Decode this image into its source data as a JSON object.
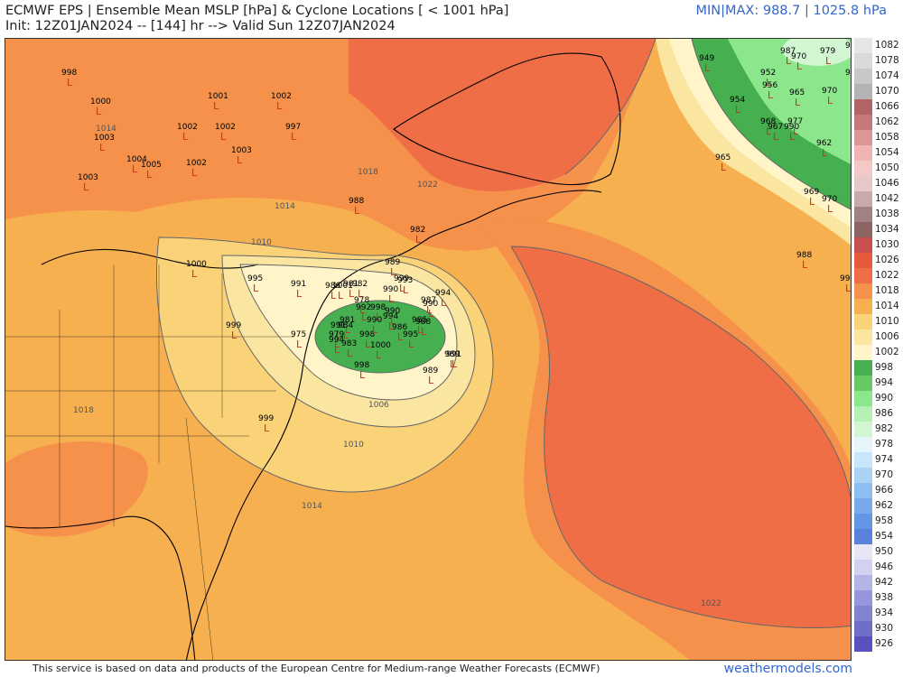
{
  "header": {
    "title_line1": "ECMWF EPS | Ensemble Mean MSLP [hPa] & Cyclone Locations [ < 1001 hPa]",
    "title_line2": "Init: 12Z01JAN2024 -- [144] hr --> Valid Sun 12Z07JAN2024",
    "minmax": "MIN|MAX: 988.7 | 1025.8 hPa"
  },
  "footer": {
    "attribution": "This service is based on data and products of the European Centre for Medium-range Weather Forecasts (ECMWF)",
    "brand": "weathermodels.com"
  },
  "colorbar": [
    {
      "label": "1082",
      "color": "#e6e6e6"
    },
    {
      "label": "1078",
      "color": "#dadada"
    },
    {
      "label": "1074",
      "color": "#c8c8c8"
    },
    {
      "label": "1070",
      "color": "#b4b4b4"
    },
    {
      "label": "1066",
      "color": "#b46464"
    },
    {
      "label": "1062",
      "color": "#c87878"
    },
    {
      "label": "1058",
      "color": "#dc9696"
    },
    {
      "label": "1054",
      "color": "#f0b4b4"
    },
    {
      "label": "1050",
      "color": "#f5c8c8"
    },
    {
      "label": "1046",
      "color": "#e6c8c8"
    },
    {
      "label": "1042",
      "color": "#c8aaaa"
    },
    {
      "label": "1038",
      "color": "#a08282"
    },
    {
      "label": "1034",
      "color": "#8c6464"
    },
    {
      "label": "1030",
      "color": "#c85050"
    },
    {
      "label": "1026",
      "color": "#e65a3c"
    },
    {
      "label": "1022",
      "color": "#f06e46"
    },
    {
      "label": "1018",
      "color": "#f5914b"
    },
    {
      "label": "1014",
      "color": "#f7b050"
    },
    {
      "label": "1010",
      "color": "#fad278"
    },
    {
      "label": "1006",
      "color": "#fae6a0"
    },
    {
      "label": "1002",
      "color": "#fff5c8"
    },
    {
      "label": "998",
      "color": "#46af50"
    },
    {
      "label": "994",
      "color": "#64c864"
    },
    {
      "label": "990",
      "color": "#8ce68c"
    },
    {
      "label": "986",
      "color": "#b4f0b4"
    },
    {
      "label": "982",
      "color": "#d2f5d2"
    },
    {
      "label": "978",
      "color": "#e6f5fa"
    },
    {
      "label": "974",
      "color": "#c8e6fa"
    },
    {
      "label": "970",
      "color": "#aad2f5"
    },
    {
      "label": "966",
      "color": "#8cbef0"
    },
    {
      "label": "962",
      "color": "#78aaeb"
    },
    {
      "label": "958",
      "color": "#6496e6"
    },
    {
      "label": "954",
      "color": "#5a82dc"
    },
    {
      "label": "950",
      "color": "#e6e6f5"
    },
    {
      "label": "946",
      "color": "#d2d2f0"
    },
    {
      "label": "942",
      "color": "#b4b4e6"
    },
    {
      "label": "938",
      "color": "#9696dc"
    },
    {
      "label": "934",
      "color": "#8282d2"
    },
    {
      "label": "930",
      "color": "#6e6ec8"
    },
    {
      "label": "926",
      "color": "#5a50be"
    }
  ],
  "isobar_labels": [
    "1014",
    "1018",
    "1022",
    "1014",
    "1010",
    "1006",
    "1010",
    "1014",
    "1018",
    "1022"
  ],
  "cyclone_symbol": "L",
  "cyclones": [
    "998",
    "1000",
    "1001",
    "1002",
    "1003",
    "1002",
    "1002",
    "997",
    "1003",
    "1004",
    "1005",
    "1002",
    "1003",
    "1000",
    "949",
    "987",
    "979",
    "966",
    "952",
    "970",
    "993",
    "956",
    "970",
    "965",
    "954",
    "968",
    "967",
    "977",
    "990",
    "962",
    "965",
    "969",
    "970",
    "988",
    "996",
    "988",
    "982",
    "989",
    "995",
    "991",
    "999",
    "993",
    "994",
    "990",
    "987",
    "994",
    "998",
    "990",
    "992",
    "998",
    "981",
    "990",
    "985",
    "991",
    "988",
    "986",
    "995",
    "1000",
    "983",
    "979",
    "994",
    "998",
    "989",
    "991",
    "989",
    "975",
    "999",
    "999",
    "984",
    "986",
    "1001",
    "990",
    "982",
    "978",
    "981"
  ]
}
